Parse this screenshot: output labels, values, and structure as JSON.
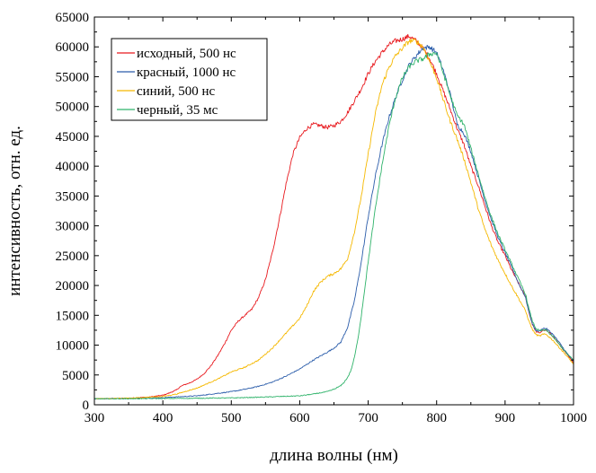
{
  "chart_data": {
    "type": "line",
    "xlabel": "длина волны (нм)",
    "ylabel": "интенсивность, отн. ед.",
    "xlim": [
      300,
      1000
    ],
    "ylim": [
      0,
      65000
    ],
    "xticks": [
      300,
      400,
      500,
      600,
      700,
      800,
      900,
      1000
    ],
    "yticks": [
      0,
      5000,
      10000,
      15000,
      20000,
      25000,
      30000,
      35000,
      40000,
      45000,
      50000,
      55000,
      60000,
      65000
    ],
    "grid": false,
    "legend_position": "top-left",
    "series": [
      {
        "name": "исходный, 500 нс",
        "color": "#e8191e",
        "x": [
          300,
          350,
          380,
          400,
          410,
          420,
          425,
          430,
          440,
          450,
          460,
          470,
          480,
          490,
          500,
          510,
          520,
          530,
          540,
          550,
          560,
          570,
          580,
          590,
          600,
          610,
          620,
          630,
          640,
          650,
          660,
          670,
          680,
          690,
          700,
          710,
          720,
          730,
          740,
          750,
          760,
          770,
          780,
          790,
          800,
          810,
          820,
          830,
          840,
          850,
          860,
          870,
          880,
          890,
          900,
          910,
          920,
          930,
          935,
          940,
          945,
          950,
          955,
          960,
          970,
          980,
          990,
          1000
        ],
        "y": [
          1000,
          1100,
          1300,
          1600,
          2000,
          2500,
          3000,
          3300,
          3700,
          4300,
          5200,
          6500,
          8200,
          10200,
          12500,
          14000,
          15000,
          16000,
          18000,
          21000,
          25500,
          31000,
          37000,
          42000,
          44800,
          46300,
          47000,
          46800,
          46500,
          46800,
          47500,
          49000,
          51000,
          53000,
          55500,
          57500,
          59000,
          60300,
          61000,
          61300,
          61800,
          61000,
          59800,
          58000,
          55500,
          52500,
          49500,
          46300,
          43600,
          40000,
          37000,
          33500,
          30000,
          27200,
          25000,
          22500,
          20300,
          18000,
          15500,
          13500,
          12300,
          12000,
          12500,
          12500,
          11500,
          10000,
          8500,
          7000
        ]
      },
      {
        "name": "красный, 1000 нс",
        "color": "#2a5caa",
        "x": [
          300,
          350,
          400,
          450,
          500,
          520,
          540,
          560,
          580,
          600,
          620,
          640,
          650,
          660,
          670,
          680,
          690,
          700,
          710,
          720,
          730,
          740,
          750,
          760,
          770,
          780,
          790,
          800,
          810,
          820,
          830,
          840,
          850,
          860,
          870,
          880,
          890,
          900,
          910,
          920,
          930,
          935,
          940,
          945,
          950,
          955,
          960,
          970,
          980,
          990,
          1000
        ],
        "y": [
          1000,
          1050,
          1200,
          1500,
          2200,
          2600,
          3100,
          3800,
          4800,
          6000,
          7500,
          8800,
          9500,
          10500,
          13000,
          17500,
          24000,
          31500,
          38000,
          43500,
          48000,
          51500,
          54500,
          57000,
          58500,
          59800,
          60000,
          59000,
          56000,
          52000,
          47000,
          45500,
          42500,
          38500,
          34500,
          31000,
          28000,
          25500,
          23000,
          20300,
          18000,
          15500,
          13500,
          12500,
          12300,
          12800,
          12800,
          11800,
          10300,
          8700,
          7300
        ]
      },
      {
        "name": "синий, 500 нс",
        "color": "#f5b800",
        "x": [
          300,
          350,
          400,
          420,
          450,
          480,
          500,
          520,
          540,
          560,
          580,
          600,
          610,
          620,
          630,
          640,
          650,
          660,
          670,
          680,
          690,
          700,
          710,
          720,
          730,
          740,
          750,
          760,
          770,
          780,
          790,
          800,
          810,
          820,
          830,
          840,
          850,
          860,
          870,
          880,
          890,
          900,
          910,
          920,
          930,
          935,
          940,
          945,
          950,
          955,
          960,
          970,
          980,
          990,
          1000
        ],
        "y": [
          1000,
          1100,
          1400,
          1800,
          2800,
          4300,
          5500,
          6300,
          7500,
          9500,
          12000,
          14500,
          16500,
          19000,
          20500,
          21500,
          22000,
          22800,
          24500,
          29000,
          35000,
          42000,
          48500,
          53500,
          56500,
          58500,
          59800,
          61000,
          61000,
          60000,
          57500,
          54800,
          51000,
          47500,
          44500,
          41200,
          37300,
          33200,
          29600,
          26700,
          24200,
          22000,
          19800,
          17800,
          15700,
          14000,
          12600,
          11800,
          11500,
          11800,
          11800,
          10800,
          9500,
          8200,
          6800
        ]
      },
      {
        "name": "черный, 35 мс",
        "color": "#2fb36a",
        "x": [
          300,
          400,
          500,
          550,
          600,
          620,
          640,
          650,
          660,
          665,
          670,
          675,
          680,
          685,
          690,
          700,
          710,
          720,
          730,
          740,
          750,
          760,
          770,
          780,
          790,
          800,
          810,
          820,
          830,
          840,
          850,
          860,
          870,
          880,
          890,
          900,
          910,
          920,
          930,
          935,
          940,
          945,
          950,
          955,
          960,
          970,
          980,
          990,
          1000
        ],
        "y": [
          1000,
          1050,
          1150,
          1300,
          1500,
          1800,
          2200,
          2600,
          3200,
          3800,
          4600,
          5800,
          8000,
          11000,
          15000,
          24000,
          32500,
          40000,
          46500,
          51500,
          54800,
          56700,
          57600,
          58000,
          58800,
          59000,
          55500,
          51800,
          48500,
          47000,
          43000,
          39000,
          35000,
          31500,
          28500,
          26000,
          23500,
          21000,
          18500,
          16000,
          14000,
          12800,
          12400,
          12500,
          12500,
          11400,
          10000,
          8600,
          7500
        ]
      }
    ]
  }
}
